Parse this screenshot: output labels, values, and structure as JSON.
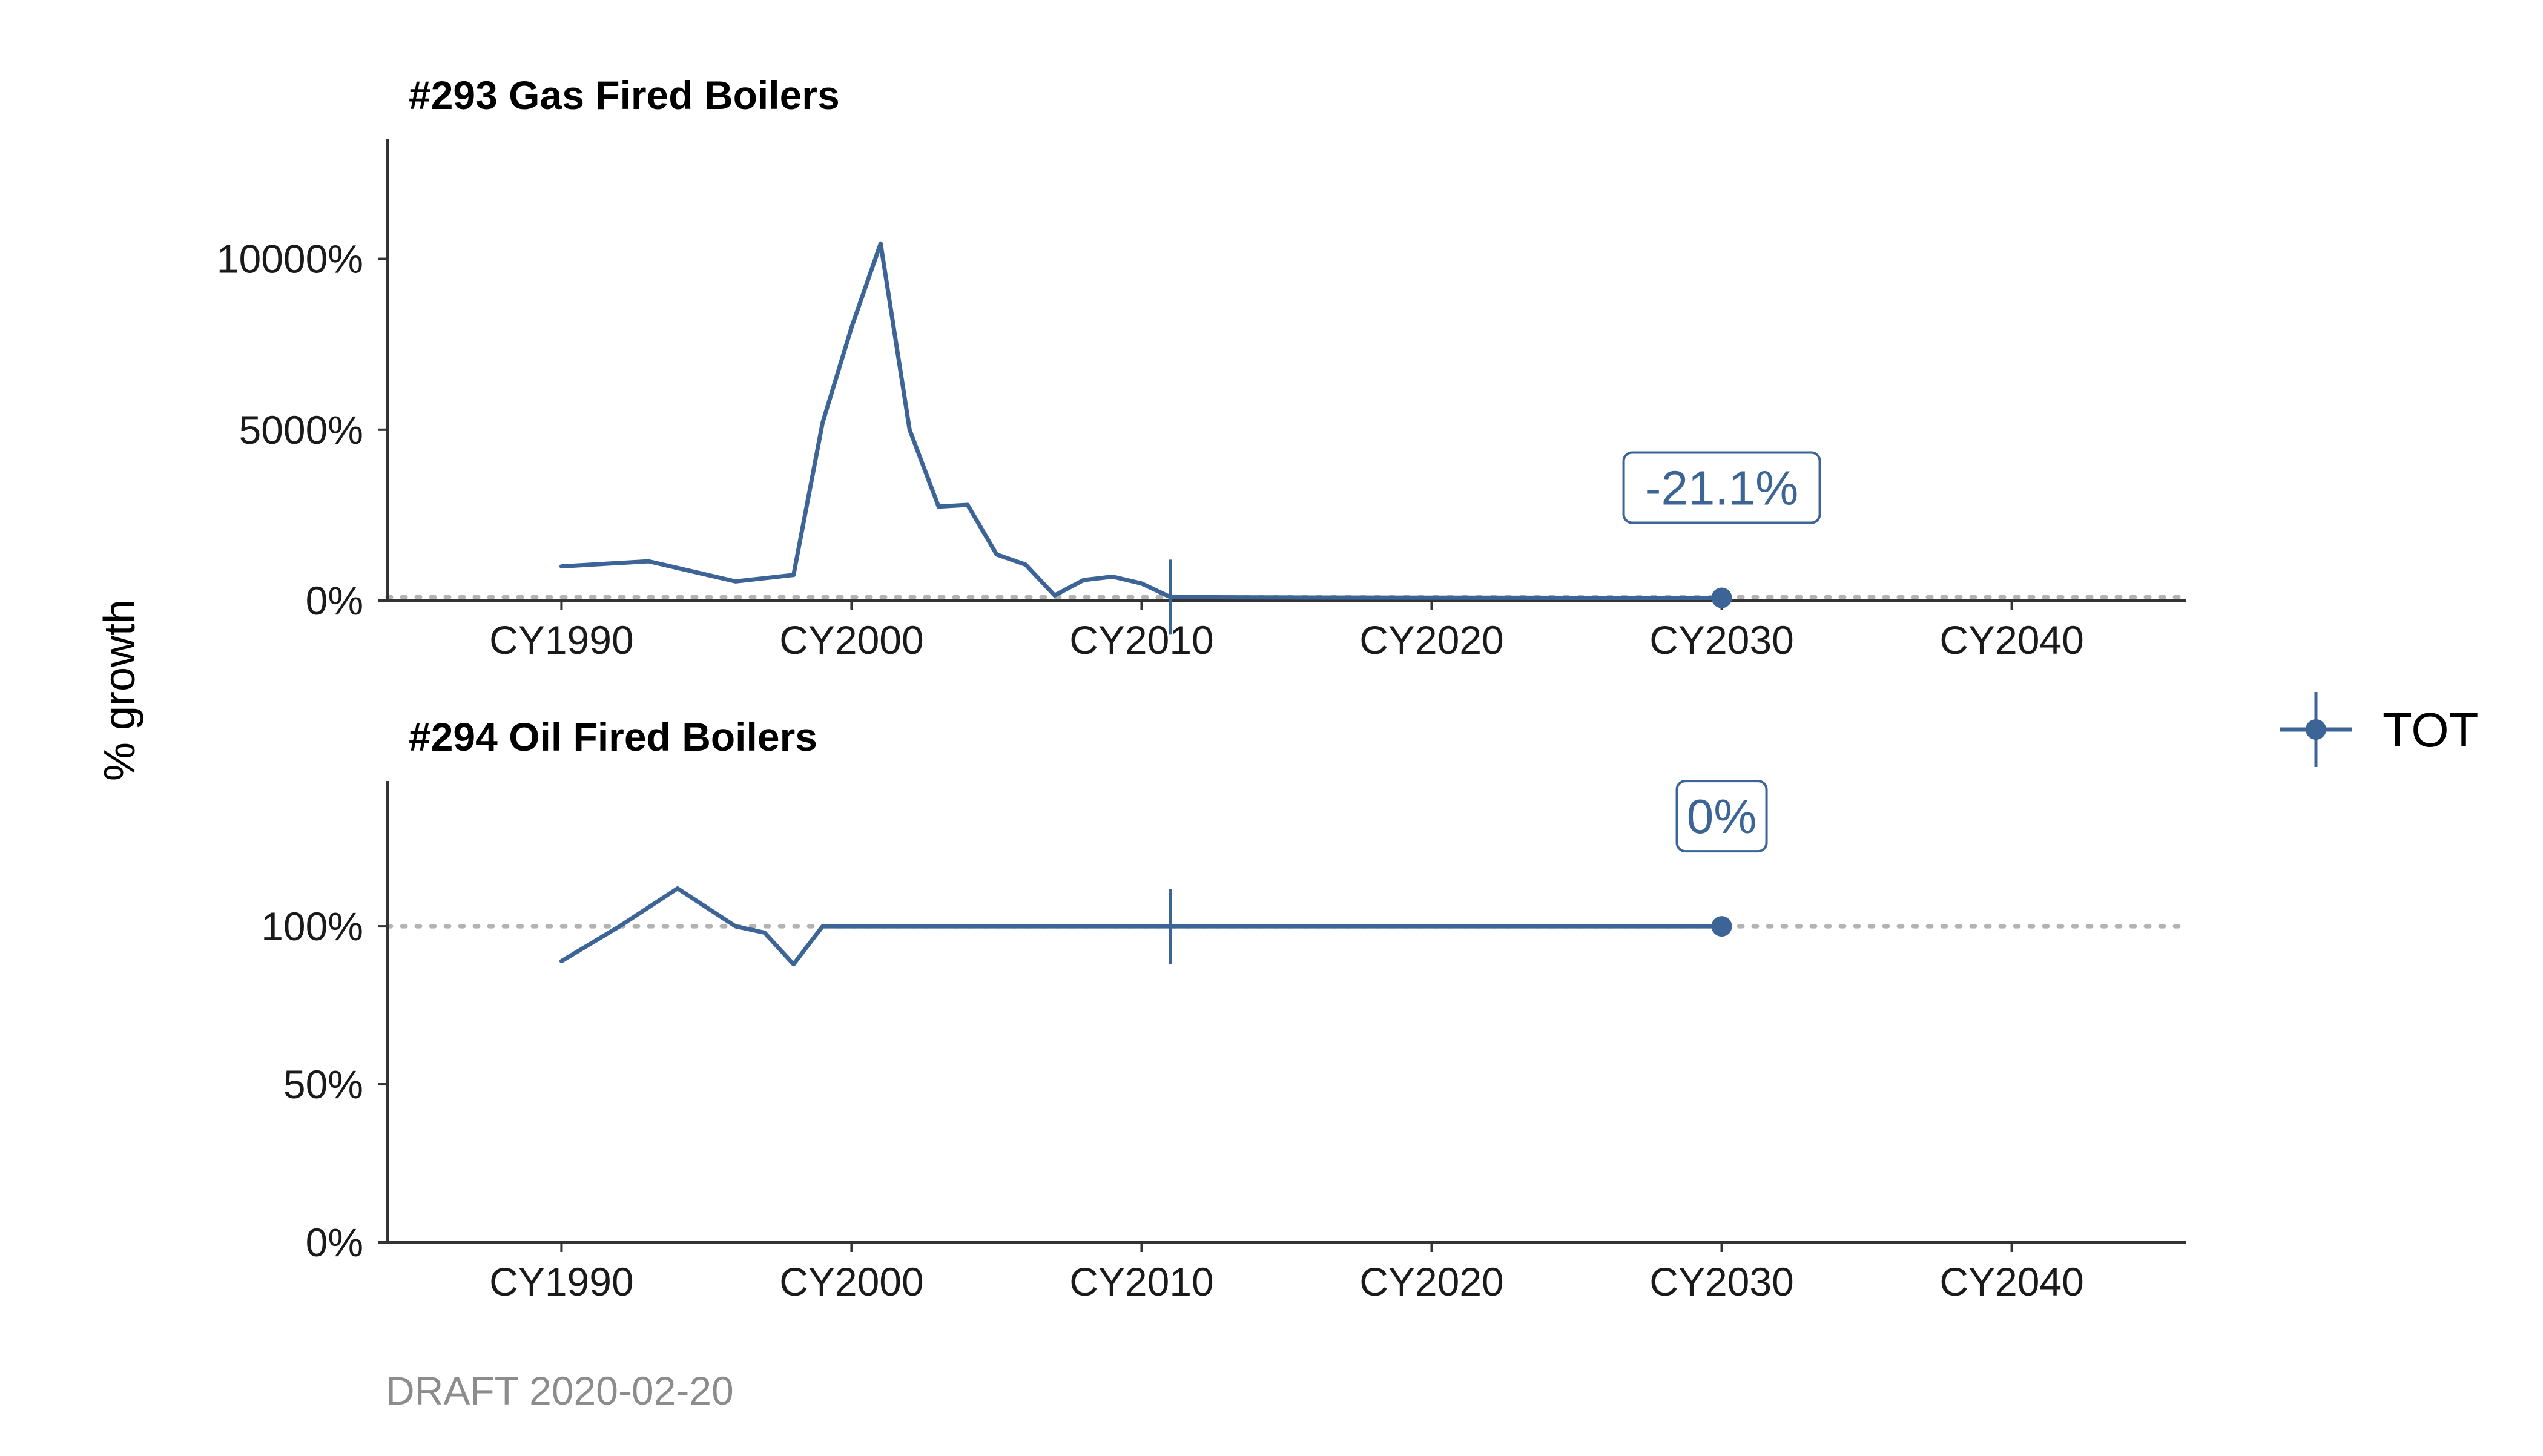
{
  "figure": {
    "ylabel": "% growth",
    "draft_note": "DRAFT 2020-02-20",
    "legend": [
      {
        "label": "TOT",
        "color": "#3d6496"
      }
    ]
  },
  "chart_data": [
    {
      "type": "line",
      "title": "#293 Gas Fired Boilers",
      "xlabel": "",
      "ylabel": "% growth",
      "x_ticks": [
        1990,
        2000,
        2010,
        2020,
        2030,
        2040
      ],
      "x_tick_labels": [
        "CY1990",
        "CY2000",
        "CY2010",
        "CY2020",
        "CY2030",
        "CY2040"
      ],
      "y_ticks": [
        0,
        5000,
        10000
      ],
      "y_tick_labels": [
        "0%",
        "5000%",
        "10000%"
      ],
      "xlim": [
        1984,
        2046
      ],
      "ylim": [
        0,
        13500
      ],
      "reference_line": 100,
      "marker_year": 2011,
      "series": [
        {
          "name": "TOT",
          "color": "#3d6496",
          "x": [
            1990,
            1993,
            1996,
            1998,
            1999,
            2000,
            2001,
            2002,
            2003,
            2004,
            2005,
            2006,
            2007,
            2008,
            2009,
            2010,
            2011,
            2012,
            2015,
            2020,
            2025,
            2030
          ],
          "values": [
            1000,
            1150,
            560,
            750,
            5200,
            8000,
            10450,
            5000,
            2750,
            2800,
            1350,
            1050,
            150,
            600,
            700,
            500,
            100,
            100,
            90,
            85,
            80,
            79
          ],
          "end_label": "-21.1%"
        }
      ]
    },
    {
      "type": "line",
      "title": "#294 Oil Fired Boilers",
      "xlabel": "",
      "ylabel": "% growth",
      "x_ticks": [
        1990,
        2000,
        2010,
        2020,
        2030,
        2040
      ],
      "x_tick_labels": [
        "CY1990",
        "CY2000",
        "CY2010",
        "CY2020",
        "CY2030",
        "CY2040"
      ],
      "y_ticks": [
        0,
        50,
        100
      ],
      "y_tick_labels": [
        "0%",
        "50%",
        "100%"
      ],
      "xlim": [
        1984,
        2046
      ],
      "ylim": [
        0,
        146
      ],
      "reference_line": 100,
      "marker_year": 2011,
      "series": [
        {
          "name": "TOT",
          "color": "#3d6496",
          "x": [
            1990,
            1992,
            1994,
            1996,
            1997,
            1998,
            1999,
            2000,
            2005,
            2010,
            2011,
            2015,
            2020,
            2025,
            2030
          ],
          "values": [
            89,
            100,
            112,
            100,
            98,
            88,
            100,
            100,
            100,
            100,
            100,
            100,
            100,
            100,
            100
          ],
          "end_label": "0%"
        }
      ]
    }
  ]
}
